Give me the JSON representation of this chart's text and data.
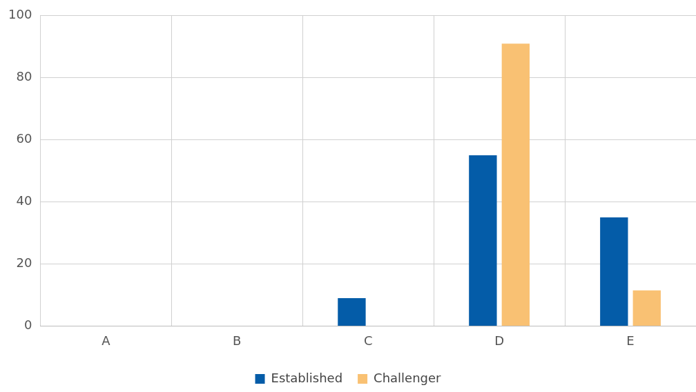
{
  "chart_data": {
    "type": "bar",
    "categories": [
      "A",
      "B",
      "C",
      "D",
      "E"
    ],
    "series": [
      {
        "name": "Established",
        "color": "#045ca8",
        "values": [
          0,
          0,
          9,
          55,
          35
        ]
      },
      {
        "name": "Challenger",
        "color": "#f9c173",
        "values": [
          0,
          0,
          0,
          91,
          11.5
        ]
      }
    ],
    "ylim": [
      0,
      100
    ],
    "yticks": [
      0,
      20,
      40,
      60,
      80,
      100
    ],
    "grid": true,
    "legend": "bottom"
  }
}
